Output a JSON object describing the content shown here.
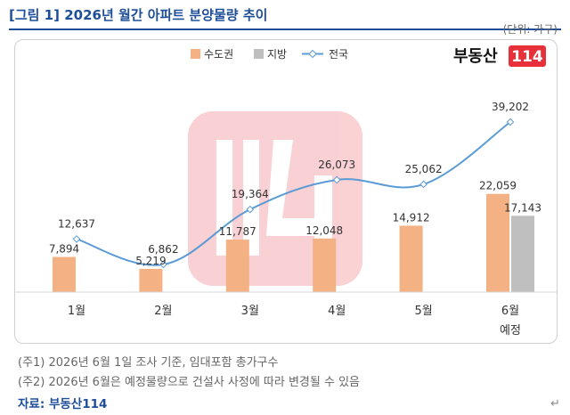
{
  "header": {
    "title": "[그림 1] 2026년 월간 아파트 분양물량 추이",
    "unit": "(단위: 가구)"
  },
  "logo": {
    "text": "부동산",
    "badge": "114",
    "color": "#e8303a"
  },
  "chart_data": {
    "type": "bar",
    "categories": [
      "1월",
      "2월",
      "3월",
      "4월",
      "5월",
      "6월"
    ],
    "category_sublabels": [
      "",
      "",
      "",
      "",
      "",
      "예정"
    ],
    "series": [
      {
        "name": "수도권",
        "kind": "bar",
        "color": "#f4b183",
        "values": [
          7894,
          5219,
          11787,
          12048,
          14912,
          22059
        ],
        "labels": [
          "7,894",
          "5,219",
          "11,787",
          "12,048",
          "14,912",
          "22,059"
        ]
      },
      {
        "name": "지방",
        "kind": "bar",
        "color": "#bfbfbf",
        "values": [
          null,
          null,
          null,
          null,
          null,
          17143
        ],
        "labels": [
          "",
          "",
          "",
          "",
          "",
          "17,143"
        ]
      },
      {
        "name": "전국",
        "kind": "line",
        "color": "#5b9bd5",
        "values": [
          12637,
          6862,
          19364,
          26073,
          25062,
          39202
        ],
        "labels": [
          "12,637",
          "6,862",
          "19,364",
          "26,073",
          "25,062",
          "39,202"
        ]
      }
    ],
    "legend_position": "top",
    "grid": false,
    "ylim": [
      0,
      40000
    ]
  },
  "notes": [
    "(주1) 2026년 6월 1일 조사 기준, 임대포함 총가구수",
    "(주2) 2026년 6월은 예정물량으로 건설사 사정에 따라 변경될 수 있음"
  ],
  "source": "자료: 부동산114",
  "return_symbol": "↵"
}
